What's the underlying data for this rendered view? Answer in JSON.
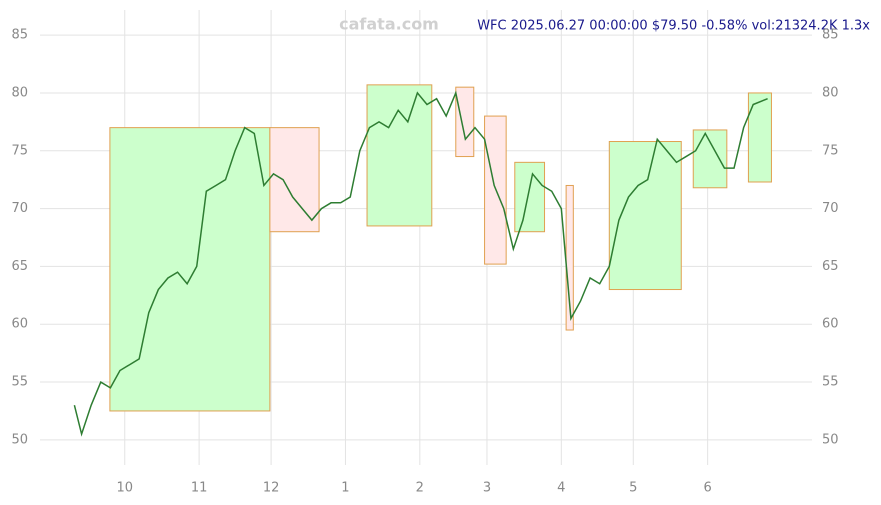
{
  "chart_data": {
    "type": "line",
    "title": "WFC 2025.06.27 00:00:00 $79.50 -0.58% vol:21324.2K 1.3x",
    "watermark": "cafata.com",
    "x": [
      -5,
      -2,
      2,
      6,
      10,
      14,
      18,
      22,
      26,
      30,
      34,
      38,
      42,
      46,
      50,
      54,
      58,
      62,
      66,
      70,
      74,
      78,
      82,
      86,
      90,
      94,
      98,
      102,
      106,
      110,
      114,
      118,
      122,
      126,
      130,
      134,
      138,
      142,
      146,
      150,
      154,
      158,
      162,
      166,
      170,
      174,
      178,
      182,
      186,
      190,
      194,
      198,
      202,
      206,
      210,
      214,
      218,
      222,
      226,
      230,
      234,
      238,
      242,
      246,
      250,
      254,
      258,
      262,
      266,
      270,
      274,
      278,
      284
    ],
    "series": [
      {
        "name": "WFC",
        "color": "#2e7d32",
        "values": [
          53,
          50.5,
          53,
          55,
          54.5,
          56,
          56.5,
          57,
          61,
          63,
          64,
          64.5,
          63.5,
          65,
          71.5,
          72,
          72.5,
          75,
          77,
          76.5,
          72,
          73,
          72.5,
          71,
          70,
          69,
          70,
          70.5,
          70.5,
          71,
          75,
          77,
          77.5,
          77,
          78.5,
          77.5,
          80,
          79,
          79.5,
          78,
          80,
          76,
          77,
          76,
          72,
          70,
          66.5,
          69,
          73,
          72,
          71.5,
          70,
          60.5,
          62,
          64,
          63.5,
          65,
          69,
          71,
          72,
          72.5,
          76,
          75,
          74,
          74.5,
          75,
          76.5,
          75,
          73.5,
          73.5,
          77,
          79,
          79.5
        ]
      }
    ],
    "zones": [
      {
        "color": "#ccffcc",
        "x": [
          9.8,
          76.5
        ],
        "y": [
          52.5,
          77
        ]
      },
      {
        "color": "#ffe8e8",
        "x": [
          76.5,
          97
        ],
        "y": [
          68,
          77
        ]
      },
      {
        "color": "#ccffcc",
        "x": [
          117,
          144
        ],
        "y": [
          68.5,
          80.7
        ]
      },
      {
        "color": "#ffe8e8",
        "x": [
          154,
          161.5
        ],
        "y": [
          74.5,
          80.5
        ]
      },
      {
        "color": "#ffe8e8",
        "x": [
          166,
          175
        ],
        "y": [
          65.2,
          78
        ]
      },
      {
        "color": "#ccffcc",
        "x": [
          178.6,
          191
        ],
        "y": [
          68,
          74
        ]
      },
      {
        "color": "#ffe8e8",
        "x": [
          200,
          203
        ],
        "y": [
          59.5,
          72
        ]
      },
      {
        "color": "#ccffcc",
        "x": [
          218,
          248
        ],
        "y": [
          63,
          75.8
        ]
      },
      {
        "color": "#ccffcc",
        "x": [
          253,
          267
        ],
        "y": [
          71.8,
          76.8
        ]
      },
      {
        "color": "#ccffcc",
        "x": [
          276,
          285.6
        ],
        "y": [
          72.3,
          80
        ]
      }
    ],
    "xlim": [
      -6,
      290
    ],
    "xticks": [
      {
        "value": 16,
        "label": "10"
      },
      {
        "value": 47,
        "label": "11"
      },
      {
        "value": 77,
        "label": "12"
      },
      {
        "value": 108,
        "label": "1"
      },
      {
        "value": 139,
        "label": "2"
      },
      {
        "value": 167,
        "label": "3"
      },
      {
        "value": 198,
        "label": "4"
      },
      {
        "value": 228,
        "label": "5"
      },
      {
        "value": 259,
        "label": "6"
      }
    ],
    "ylim": [
      48,
      87
    ],
    "yticks": [
      50,
      55,
      60,
      65,
      70,
      75,
      80,
      85
    ],
    "grid": true
  }
}
